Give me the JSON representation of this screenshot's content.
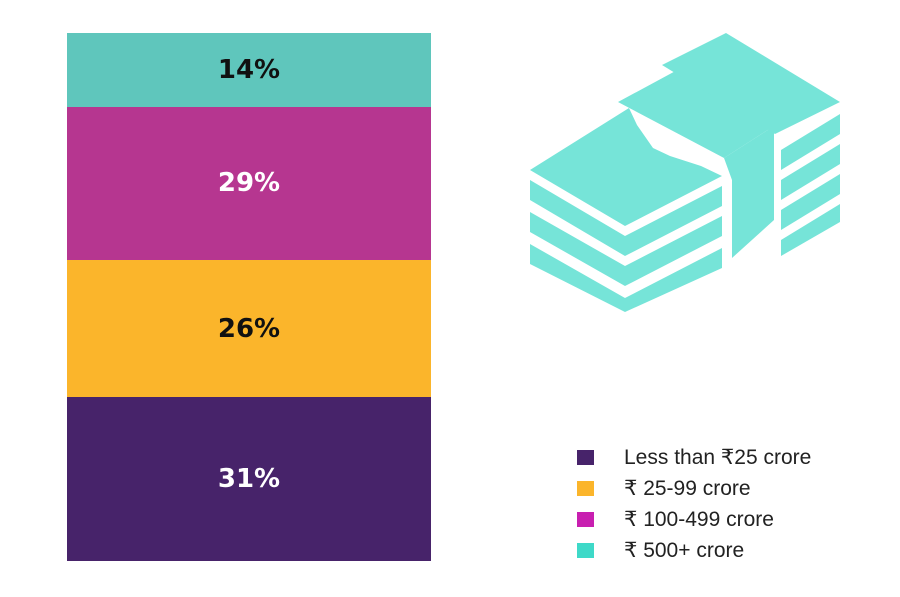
{
  "chart_data": {
    "type": "bar",
    "subtype": "100% stacked single column",
    "categories": [
      "Less than ₹25 crore",
      "₹ 25-99 crore",
      "₹ 100-499 crore",
      "₹ 500+ crore"
    ],
    "values": [
      31,
      26,
      29,
      14
    ],
    "labels": [
      "31%",
      "26%",
      "29%",
      "14%"
    ],
    "unit": "%",
    "stack_order": "bottom-to-top",
    "legend_position": "bottom-right",
    "colors": [
      "#47236A",
      "#FBB52B",
      "#B63690",
      "#5FC6BC"
    ],
    "label_colors": [
      "#ffffff",
      "#111111",
      "#ffffff",
      "#111111"
    ]
  },
  "legend": {
    "items": [
      {
        "label": "Less than ₹25 crore",
        "color": "#47236A"
      },
      {
        "label": "₹ 25-99 crore",
        "color": "#FBB52B"
      },
      {
        "label": "₹ 100-499 crore",
        "color": "#C81FB0"
      },
      {
        "label": "₹ 500+ crore",
        "color": "#3ED9C8"
      }
    ]
  },
  "decor": {
    "icon_name": "money-stack-icon",
    "icon_color": "#76E4D8"
  }
}
